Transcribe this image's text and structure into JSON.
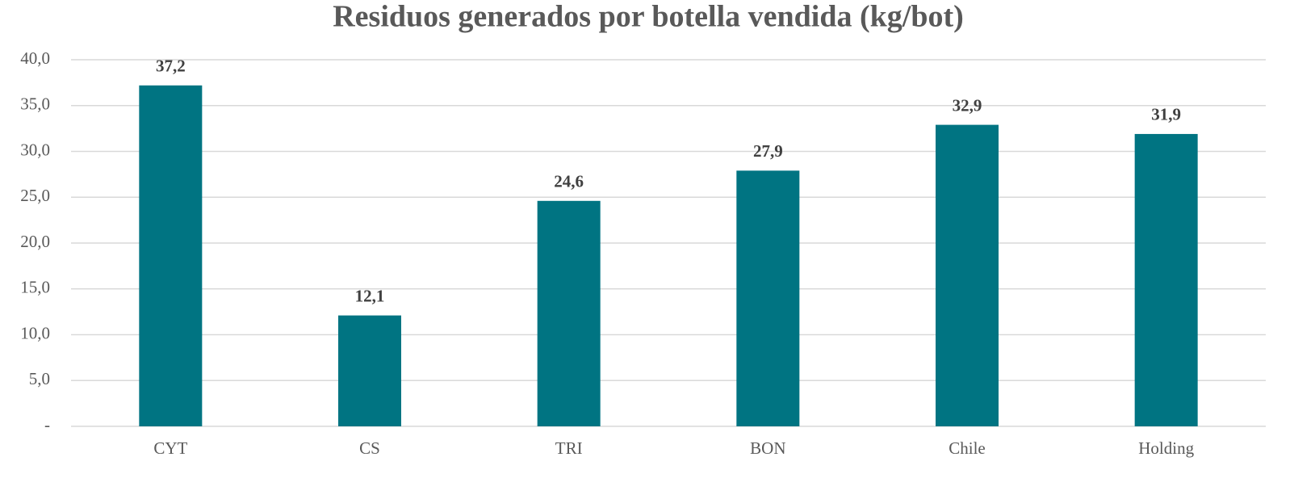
{
  "chart_data": {
    "type": "bar",
    "title": "Residuos generados por botella vendida (kg/bot)",
    "categories": [
      "CYT",
      "CS",
      "TRI",
      "BON",
      "Chile",
      "Holding"
    ],
    "values": [
      37.2,
      12.1,
      24.6,
      27.9,
      32.9,
      31.9
    ],
    "value_labels": [
      "37,2",
      "12,1",
      "24,6",
      "27,9",
      "32,9",
      "31,9"
    ],
    "color": "#007482",
    "ylim": [
      0,
      40
    ],
    "yticks": [
      {
        "value": 0,
        "label": "-"
      },
      {
        "value": 5,
        "label": "5,0"
      },
      {
        "value": 10,
        "label": "10,0"
      },
      {
        "value": 15,
        "label": "15,0"
      },
      {
        "value": 20,
        "label": "20,0"
      },
      {
        "value": 25,
        "label": "25,0"
      },
      {
        "value": 30,
        "label": "30,0"
      },
      {
        "value": 35,
        "label": "35,0"
      },
      {
        "value": 40,
        "label": "40,0"
      }
    ],
    "grid": true
  }
}
